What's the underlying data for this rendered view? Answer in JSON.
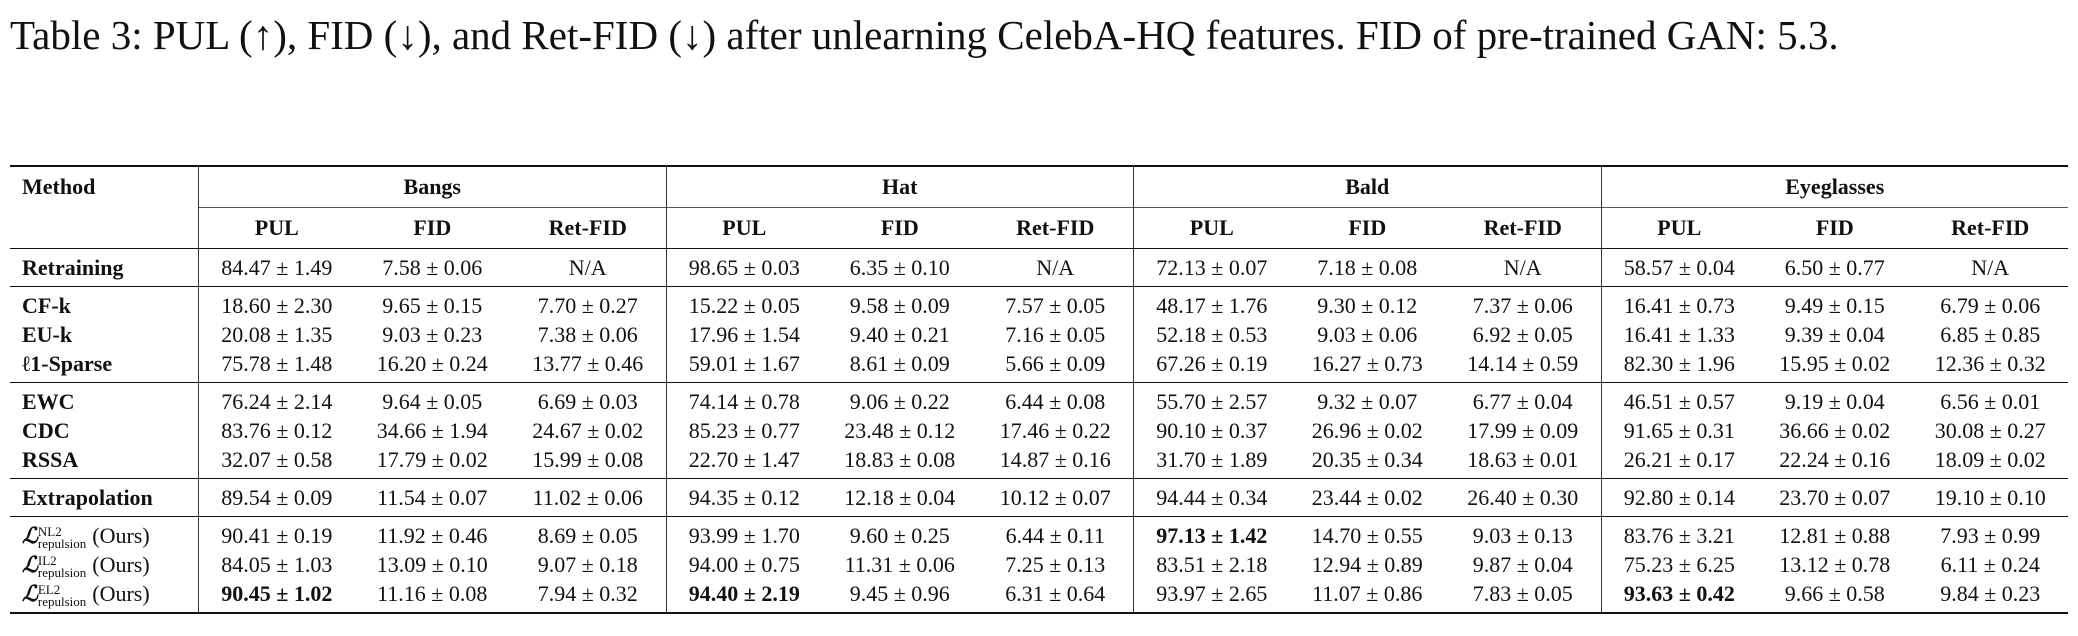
{
  "caption": "Table 3: PUL (↑), FID (↓), and Ret-FID (↓) after unlearning CelebA-HQ features. FID of pre-trained GAN: 5.3.",
  "table": {
    "method_header": "Method",
    "groups": [
      "Bangs",
      "Hat",
      "Bald",
      "Eyeglasses"
    ],
    "subheaders": [
      "PUL",
      "FID",
      "Ret-FID"
    ],
    "rows": [
      {
        "method": "Retraining",
        "cells": [
          "84.47 ± 1.49",
          "7.58 ± 0.06",
          "N/A",
          "98.65 ± 0.03",
          "6.35 ± 0.10",
          "N/A",
          "72.13 ± 0.07",
          "7.18 ± 0.08",
          "N/A",
          "58.57 ± 0.04",
          "6.50 ± 0.77",
          "N/A"
        ]
      },
      {
        "method": "CF-k",
        "cells": [
          "18.60 ± 2.30",
          "9.65 ± 0.15",
          "7.70 ± 0.27",
          "15.22 ± 0.05",
          "9.58 ± 0.09",
          "7.57 ± 0.05",
          "48.17 ± 1.76",
          "9.30 ± 0.12",
          "7.37 ± 0.06",
          "16.41 ± 0.73",
          "9.49 ± 0.15",
          "6.79 ± 0.06"
        ]
      },
      {
        "method": "EU-k",
        "cells": [
          "20.08 ± 1.35",
          "9.03 ± 0.23",
          "7.38 ± 0.06",
          "17.96 ± 1.54",
          "9.40 ± 0.21",
          "7.16 ± 0.05",
          "52.18 ± 0.53",
          "9.03 ± 0.06",
          "6.92 ± 0.05",
          "16.41 ± 1.33",
          "9.39 ± 0.04",
          "6.85 ± 0.85"
        ]
      },
      {
        "method": "ℓ1-Sparse",
        "cells": [
          "75.78 ± 1.48",
          "16.20 ± 0.24",
          "13.77 ± 0.46",
          "59.01 ± 1.67",
          "8.61 ± 0.09",
          "5.66 ± 0.09",
          "67.26 ± 0.19",
          "16.27 ± 0.73",
          "14.14 ± 0.59",
          "82.30 ± 1.96",
          "15.95 ± 0.02",
          "12.36 ± 0.32"
        ]
      },
      {
        "method": "EWC",
        "cells": [
          "76.24 ± 2.14",
          "9.64 ± 0.05",
          "6.69 ± 0.03",
          "74.14 ± 0.78",
          "9.06 ± 0.22",
          "6.44 ± 0.08",
          "55.70 ± 2.57",
          "9.32 ± 0.07",
          "6.77 ± 0.04",
          "46.51 ± 0.57",
          "9.19 ± 0.04",
          "6.56 ± 0.01"
        ]
      },
      {
        "method": "CDC",
        "cells": [
          "83.76 ± 0.12",
          "34.66 ± 1.94",
          "24.67 ± 0.02",
          "85.23 ± 0.77",
          "23.48 ± 0.12",
          "17.46 ± 0.22",
          "90.10 ± 0.37",
          "26.96 ± 0.02",
          "17.99 ± 0.09",
          "91.65 ± 0.31",
          "36.66 ± 0.02",
          "30.08 ± 0.27"
        ]
      },
      {
        "method": "RSSA",
        "cells": [
          "32.07 ± 0.58",
          "17.79 ± 0.02",
          "15.99 ± 0.08",
          "22.70 ± 1.47",
          "18.83 ± 0.08",
          "14.87 ± 0.16",
          "31.70 ± 1.89",
          "20.35 ± 0.34",
          "18.63 ± 0.01",
          "26.21 ± 0.17",
          "22.24 ± 0.16",
          "18.09 ± 0.02"
        ]
      },
      {
        "method": "Extrapolation",
        "cells": [
          "89.54 ± 0.09",
          "11.54 ± 0.07",
          "11.02 ± 0.06",
          "94.35 ± 0.12",
          "12.18 ± 0.04",
          "10.12 ± 0.07",
          "94.44 ± 0.34",
          "23.44 ± 0.02",
          "26.40 ± 0.30",
          "92.80 ± 0.14",
          "23.70 ± 0.07",
          "19.10 ± 0.10"
        ]
      },
      {
        "method_sym": "ℒ",
        "method_sup": "NL2",
        "method_sub": "repulsion",
        "method_suffix": "(Ours)",
        "cells": [
          "90.41 ± 0.19",
          "11.92 ± 0.46",
          "8.69 ± 0.05",
          "93.99 ± 1.70",
          "9.60 ± 0.25",
          "6.44 ± 0.11",
          "97.13 ± 1.42",
          "14.70 ± 0.55",
          "9.03 ± 0.13",
          "83.76 ± 3.21",
          "12.81 ± 0.88",
          "7.93 ± 0.99"
        ],
        "bold": [
          6
        ]
      },
      {
        "method_sym": "ℒ",
        "method_sup": "IL2",
        "method_sub": "repulsion",
        "method_suffix": "(Ours)",
        "cells": [
          "84.05 ± 1.03",
          "13.09 ± 0.10",
          "9.07 ± 0.18",
          "94.00 ± 0.75",
          "11.31 ± 0.06",
          "7.25 ± 0.13",
          "83.51 ± 2.18",
          "12.94 ± 0.89",
          "9.87 ± 0.04",
          "75.23 ± 6.25",
          "13.12 ± 0.78",
          "6.11 ± 0.24"
        ],
        "bold": []
      },
      {
        "method_sym": "ℒ",
        "method_sup": "EL2",
        "method_sub": "repulsion",
        "method_suffix": "(Ours)",
        "cells": [
          "90.45 ± 1.02",
          "11.16 ± 0.08",
          "7.94 ± 0.32",
          "94.40 ± 2.19",
          "9.45 ± 0.96",
          "6.31 ± 0.64",
          "93.97 ± 2.65",
          "11.07 ± 0.86",
          "7.83 ± 0.05",
          "93.63 ± 0.42",
          "9.66 ± 0.58",
          "9.84 ± 0.23"
        ],
        "bold": [
          0,
          3,
          9
        ]
      }
    ]
  }
}
